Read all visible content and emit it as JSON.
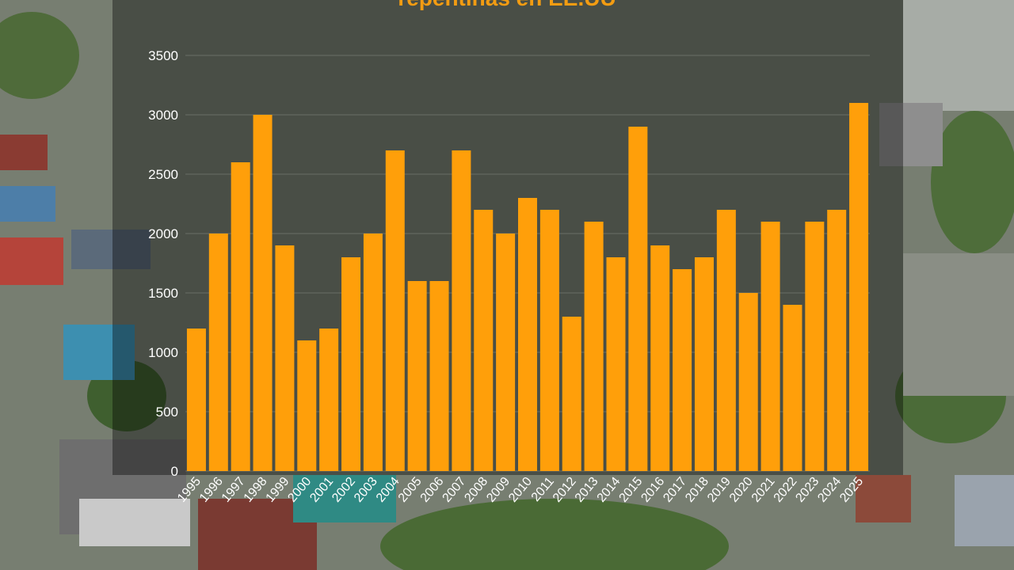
{
  "chart_data": {
    "type": "bar",
    "title": "repentinas en EE.UU",
    "xlabel": "",
    "ylabel": "",
    "ylim": [
      0,
      3500
    ],
    "yticks": [
      0,
      500,
      1000,
      1500,
      2000,
      2500,
      3000,
      3500
    ],
    "grid": true,
    "categories": [
      "1995",
      "1996",
      "1997",
      "1998",
      "1999",
      "2000",
      "2001",
      "2002",
      "2003",
      "2004",
      "2005",
      "2006",
      "2007",
      "2008",
      "2009",
      "2010",
      "2011",
      "2012",
      "2013",
      "2014",
      "2015",
      "2016",
      "2017",
      "2018",
      "2019",
      "2020",
      "2021",
      "2022",
      "2023",
      "2024",
      "2025"
    ],
    "values": [
      1200,
      2000,
      2600,
      3000,
      1900,
      1100,
      1200,
      1800,
      2000,
      2700,
      1600,
      1600,
      2700,
      2200,
      2000,
      2300,
      2200,
      1300,
      2100,
      1800,
      2900,
      1900,
      1700,
      1800,
      2200,
      1500,
      2100,
      1400,
      2100,
      2200,
      3100
    ],
    "colors": {
      "bar": "#ff9f0a",
      "text": "#ffffff",
      "title": "#f39c12"
    }
  }
}
